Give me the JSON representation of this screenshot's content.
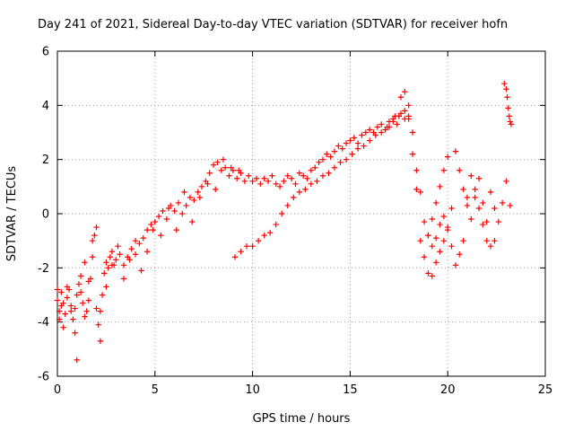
{
  "chart_data": {
    "type": "scatter",
    "title": "Day 241 of 2021, Sidereal Day-to-day VTEC variation (SDTVAR) for receiver hofn",
    "xlabel": "GPS time / hours",
    "ylabel": "SDTVAR / TECUs",
    "xlim": [
      0,
      25
    ],
    "ylim": [
      -6,
      6
    ],
    "xticks": [
      0,
      5,
      10,
      15,
      20,
      25
    ],
    "yticks": [
      -6,
      -4,
      -2,
      0,
      2,
      4,
      6
    ],
    "xtick_labels": [
      "0",
      "5",
      "10",
      "15",
      "20",
      "25"
    ],
    "ytick_labels": [
      "-6",
      "-4",
      "-2",
      "0",
      "2",
      "4",
      "6"
    ],
    "grid": true,
    "marker": "+",
    "color": "#ff0000",
    "series": [
      {
        "name": "main-trend",
        "x": [
          0.0,
          0.1,
          0.2,
          0.3,
          0.4,
          0.5,
          0.6,
          0.7,
          0.8,
          0.9,
          1.0,
          1.1,
          1.2,
          1.3,
          1.4,
          1.5,
          1.6,
          1.7,
          1.8,
          1.9,
          2.0,
          2.1,
          2.2,
          2.3,
          2.4,
          2.5,
          2.6,
          2.7,
          2.8,
          2.9,
          3.0,
          3.2,
          3.4,
          3.6,
          3.8,
          4.0,
          4.2,
          4.4,
          4.6,
          4.8,
          5.0,
          5.2,
          5.4,
          5.6,
          5.8,
          6.0,
          6.2,
          6.4,
          6.6,
          6.8,
          7.0,
          7.2,
          7.4,
          7.6,
          7.8,
          8.0,
          8.2,
          8.4,
          8.6,
          8.8,
          9.0,
          9.2,
          9.4,
          9.6,
          9.8,
          10.0,
          10.2,
          10.4,
          10.6,
          10.8,
          11.0,
          11.2,
          11.4,
          11.6,
          11.8,
          12.0,
          12.2,
          12.4,
          12.6,
          12.8,
          13.0,
          13.2,
          13.4,
          13.6,
          13.8,
          14.0,
          14.2,
          14.4,
          14.6,
          14.8,
          15.0,
          15.2,
          15.4,
          15.6,
          15.8,
          16.0,
          16.2,
          16.4,
          16.6,
          16.8,
          17.0,
          17.2,
          17.4,
          17.6,
          17.8,
          18.0
        ],
        "y": [
          -3.2,
          -3.6,
          -2.9,
          -3.3,
          -3.7,
          -3.1,
          -2.8,
          -3.4,
          -3.9,
          -3.5,
          -3.0,
          -2.6,
          -2.9,
          -3.3,
          -3.8,
          -3.6,
          -3.2,
          -2.4,
          -1.6,
          -0.8,
          -3.5,
          -4.1,
          -3.6,
          -3.0,
          -2.2,
          -1.8,
          -2.0,
          -1.6,
          -1.4,
          -1.9,
          -1.7,
          -1.5,
          -1.9,
          -1.6,
          -1.3,
          -1.5,
          -1.1,
          -0.9,
          -0.6,
          -0.4,
          -0.3,
          -0.1,
          0.1,
          -0.2,
          0.3,
          0.1,
          0.4,
          0.0,
          0.3,
          0.6,
          0.5,
          0.8,
          1.0,
          1.2,
          1.5,
          1.8,
          1.9,
          1.6,
          1.7,
          1.4,
          1.6,
          1.3,
          1.5,
          1.2,
          1.4,
          1.2,
          1.3,
          1.1,
          1.3,
          1.2,
          1.4,
          1.1,
          1.0,
          1.2,
          1.4,
          1.3,
          1.1,
          1.5,
          1.4,
          1.3,
          1.6,
          1.7,
          1.9,
          2.0,
          2.2,
          2.1,
          2.3,
          2.5,
          2.4,
          2.6,
          2.7,
          2.8,
          2.6,
          2.9,
          3.0,
          3.1,
          3.0,
          3.2,
          3.3,
          3.1,
          3.4,
          3.5,
          3.3,
          3.7,
          3.8,
          3.6
        ]
      },
      {
        "name": "scatter-cloud",
        "x": [
          0.0,
          0.1,
          0.2,
          0.3,
          0.5,
          0.7,
          0.9,
          1.0,
          1.2,
          1.4,
          1.6,
          1.8,
          2.0,
          2.2,
          2.5,
          2.8,
          3.1,
          3.4,
          3.7,
          4.0,
          4.3,
          4.6,
          4.9,
          5.3,
          5.7,
          6.1,
          6.5,
          6.9,
          7.3,
          7.7,
          8.1,
          8.5,
          8.9,
          9.3
        ],
        "y": [
          -2.8,
          -3.9,
          -3.4,
          -4.2,
          -2.7,
          -3.6,
          -4.4,
          -5.4,
          -2.3,
          -1.8,
          -2.5,
          -1.0,
          -0.5,
          -4.7,
          -2.7,
          -1.9,
          -1.2,
          -2.4,
          -1.7,
          -1.0,
          -2.1,
          -1.4,
          -0.6,
          -0.8,
          0.2,
          -0.6,
          0.8,
          -0.3,
          0.6,
          1.1,
          0.9,
          2.0,
          1.7,
          1.6
        ]
      },
      {
        "name": "evening-branch",
        "x": [
          9.1,
          9.4,
          9.7,
          10.0,
          10.3,
          10.6,
          10.9,
          11.2,
          11.5,
          11.8,
          12.1,
          12.4,
          12.7,
          13.0,
          13.3,
          13.6,
          13.9,
          14.2,
          14.5,
          14.8,
          15.1,
          15.4,
          15.7,
          16.0,
          16.3,
          16.6,
          16.9,
          17.2,
          17.5,
          17.8
        ],
        "y": [
          -1.6,
          -1.4,
          -1.2,
          -1.2,
          -1.0,
          -0.8,
          -0.7,
          -0.4,
          0.0,
          0.3,
          0.6,
          0.8,
          0.9,
          1.1,
          1.2,
          1.4,
          1.5,
          1.7,
          1.9,
          2.0,
          2.2,
          2.4,
          2.5,
          2.7,
          2.9,
          3.0,
          3.2,
          3.4,
          3.6,
          3.5
        ]
      },
      {
        "name": "late-branch-a",
        "x": [
          17.0,
          17.3,
          17.6,
          17.8,
          18.0,
          18.2,
          18.4,
          18.6,
          18.8,
          19.0,
          19.2,
          19.4,
          19.6,
          19.8,
          20.0
        ],
        "y": [
          3.2,
          3.6,
          4.3,
          4.5,
          4.0,
          3.0,
          1.6,
          0.8,
          -0.3,
          -0.8,
          -0.2,
          0.4,
          1.0,
          1.6,
          2.1
        ]
      },
      {
        "name": "late-branch-b",
        "x": [
          18.0,
          18.2,
          18.4,
          18.6,
          18.8,
          19.0,
          19.2,
          19.4,
          19.6,
          19.8,
          20.0,
          20.2,
          20.4,
          20.6,
          20.8,
          21.0,
          21.2,
          21.4,
          21.6,
          21.8,
          22.0,
          22.2,
          22.4,
          22.6,
          22.8,
          23.0,
          23.2
        ],
        "y": [
          3.5,
          2.2,
          0.9,
          -1.0,
          -1.6,
          -2.2,
          -2.3,
          -1.8,
          -1.4,
          -1.0,
          -0.6,
          -1.2,
          -1.9,
          -1.5,
          -1.0,
          0.6,
          1.4,
          0.9,
          0.2,
          -0.4,
          -1.0,
          -1.2,
          -1.0,
          -0.3,
          0.4,
          1.2,
          0.3
        ]
      },
      {
        "name": "late-branch-c",
        "x": [
          19.0,
          19.2,
          19.4,
          19.6,
          19.8,
          20.0,
          20.2,
          20.4,
          20.6,
          20.8,
          21.0,
          21.2,
          21.4,
          21.6,
          21.8,
          22.0,
          22.2,
          22.4
        ],
        "y": [
          -0.8,
          -1.2,
          -0.9,
          -0.4,
          -0.1,
          -0.5,
          0.2,
          2.3,
          1.6,
          0.9,
          0.3,
          -0.2,
          0.6,
          1.3,
          0.4,
          -0.3,
          0.8,
          0.2
        ]
      },
      {
        "name": "final-points",
        "x": [
          22.9,
          23.0,
          23.05,
          23.1,
          23.15,
          23.2,
          23.25
        ],
        "y": [
          4.8,
          4.6,
          4.3,
          3.9,
          3.6,
          3.4,
          3.3
        ]
      }
    ]
  }
}
